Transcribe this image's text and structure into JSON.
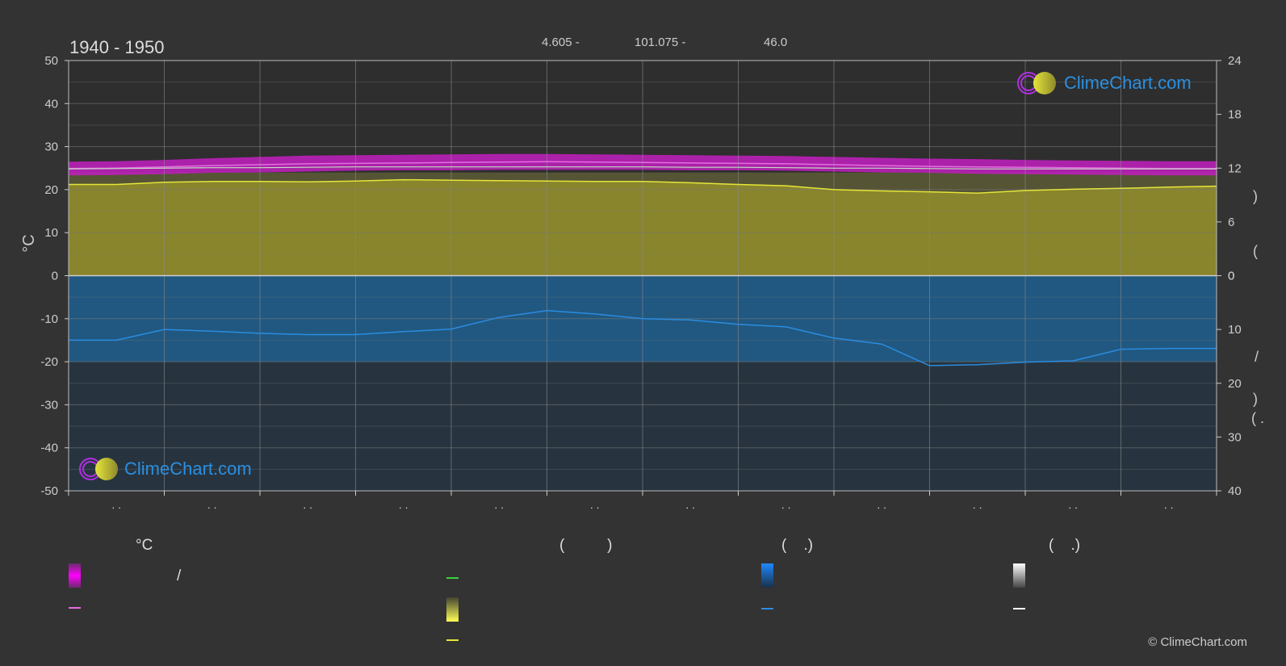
{
  "header": {
    "title": "1940 - 1950",
    "stat1": "4.605 -",
    "stat2": "101.075 -",
    "stat3": "46.0"
  },
  "left_axis_unit": "°C",
  "right_axis_labels": {
    "upper_a": ")",
    "upper_b": "(",
    "slash": "/",
    "lower_a": ")",
    "lower_b": "( .",
    "lower_c": "("
  },
  "brand": "ClimeChart.com",
  "copyright": "© ClimeChart.com",
  "legend": {
    "col1_header": "°C",
    "col2_header": "(          )",
    "col3_header": "(    .)",
    "col4_header": "(    .)",
    "col1_slash": "/"
  },
  "colors": {
    "background": "#333333",
    "temp_range": "#c21fc0",
    "temp_line": "#e36ee0",
    "daylight_line": "#c8d8c8",
    "sunshine_fill": "#8e8a2c",
    "sunshine_line": "#e5e53a",
    "rain_fill": "#1f5f8f",
    "rain_line": "#2a8ce0",
    "green_line": "#3bd13b",
    "white_line": "#ffffff"
  },
  "chart_data": {
    "type": "area",
    "title": "1940 - 1950",
    "ylabel": "°C",
    "ylim": [
      -50,
      50
    ],
    "y_ticks": [
      50,
      40,
      30,
      20,
      10,
      0,
      -10,
      -20,
      -30,
      -40,
      -50
    ],
    "right_upper_ticks": [
      24,
      18,
      12,
      6,
      0
    ],
    "right_lower_ticks": [
      0,
      10,
      20,
      30,
      40
    ],
    "x_tick_labels": [
      ". .",
      ". .",
      ". .",
      ". .",
      ". .",
      ". .",
      ". .",
      ". .",
      ". .",
      ". .",
      ". .",
      ". ."
    ],
    "x": [
      0,
      0.5,
      1,
      1.5,
      2,
      2.5,
      3,
      3.5,
      4,
      4.5,
      5,
      5.5,
      6,
      6.5,
      7,
      7.5,
      8,
      8.5,
      9,
      9.5,
      10,
      10.5,
      11,
      11.5,
      12
    ],
    "series": [
      {
        "values": [
          26.5,
          26.6,
          26.9,
          27.3,
          27.6,
          27.9,
          28.0,
          28.1,
          28.2,
          28.3,
          28.3,
          28.2,
          28.1,
          28.0,
          27.9,
          27.8,
          27.6,
          27.4,
          27.2,
          27.1,
          26.9,
          26.8,
          26.7,
          26.6,
          26.6
        ]
      },
      {
        "values": [
          23.3,
          23.4,
          23.6,
          23.9,
          24.0,
          24.2,
          24.4,
          24.5,
          24.5,
          24.6,
          24.6,
          24.6,
          24.6,
          24.5,
          24.5,
          24.4,
          24.2,
          24.0,
          23.9,
          23.7,
          23.6,
          23.5,
          23.4,
          23.3,
          23.3
        ]
      },
      {
        "values": [
          24.9,
          25.0,
          25.3,
          25.6,
          25.8,
          26.0,
          26.1,
          26.2,
          26.3,
          26.4,
          26.5,
          26.4,
          26.3,
          26.2,
          26.1,
          26.0,
          25.8,
          25.6,
          25.4,
          25.3,
          25.2,
          25.1,
          25.0,
          24.9,
          24.9
        ]
      },
      {
        "values": [
          24.8,
          24.9,
          25.0,
          25.1,
          25.1,
          25.2,
          25.3,
          25.3,
          25.3,
          25.3,
          25.3,
          25.3,
          25.3,
          25.2,
          25.2,
          25.1,
          25.0,
          25.0,
          24.9,
          24.8,
          24.8,
          24.8,
          24.8,
          24.8,
          24.8
        ]
      },
      {
        "values": [
          21.2,
          21.2,
          21.7,
          21.9,
          21.9,
          21.8,
          22.0,
          22.3,
          22.2,
          22.1,
          22.0,
          21.9,
          21.9,
          21.6,
          21.2,
          20.9,
          20.0,
          19.7,
          19.5,
          19.2,
          19.8,
          20.1,
          20.3,
          20.6,
          20.8
        ]
      },
      {
        "values": [
          -15.0,
          -15.0,
          -12.5,
          -12.9,
          -13.4,
          -13.7,
          -13.7,
          -13.0,
          -12.4,
          -9.7,
          -8.1,
          -8.9,
          -10.0,
          -10.3,
          -11.3,
          -11.9,
          -14.5,
          -15.9,
          -20.9,
          -20.7,
          -20.1,
          -19.8,
          -17.1,
          -16.9,
          -16.9
        ]
      }
    ],
    "legend_colors": [
      "#e100e0",
      "#e36ee0",
      "#3bd13b",
      "#e5e53a",
      "#e5e53a",
      "#2a8ce0",
      "#2a8ce0",
      "#ffffff",
      "#ffffff"
    ]
  }
}
